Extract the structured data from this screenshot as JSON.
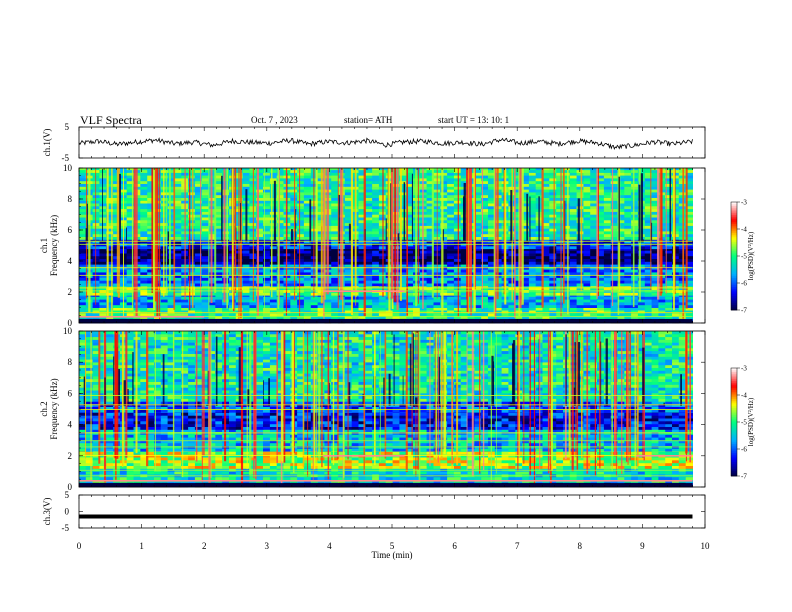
{
  "header": {
    "title": "VLF  Spectra",
    "date": "Oct. 7  , 2023",
    "station": "station= ATH",
    "start": "start  UT  =    13: 10: 1"
  },
  "colors": {
    "waveform": "#000000",
    "colormap": [
      "#000040",
      "#0000ff",
      "#00b0ff",
      "#00ff80",
      "#ffff00",
      "#ff0000",
      "#ffffff"
    ]
  },
  "chart_data": [
    {
      "type": "line",
      "name": "ch1-waveform",
      "ylabel": "ch.1(V)",
      "ylim": [
        -5,
        5
      ],
      "y_ticks": [
        "5",
        "-5"
      ],
      "xlim": [
        0,
        10
      ],
      "series": [
        {
          "values": [
            -0.3,
            0.4,
            -0.6,
            0.2,
            0.8,
            -0.4,
            0.1,
            -0.9,
            0.5,
            0.0,
            -0.2,
            0.7,
            -0.5,
            0.3,
            -0.1,
            0.6,
            -0.8,
            0.2,
            0.4,
            -0.3,
            0.1,
            -0.6,
            0.9,
            -0.2,
            0.3,
            -0.4,
            0.5,
            -0.1,
            -1.6,
            -0.9,
            0.2,
            -0.5,
            0.3
          ]
        }
      ]
    },
    {
      "type": "heatmap",
      "name": "ch1-spectrogram",
      "ylabel": "ch.1\nFrequency (kHz)",
      "ylim": [
        0,
        10
      ],
      "y_ticks": [
        "0",
        "2",
        "4",
        "6",
        "8",
        "10"
      ],
      "xlim": [
        0,
        9.8
      ],
      "colorbar": {
        "label": "log(PSD)(V²/Hz)",
        "range": [
          -7,
          -3
        ],
        "ticks": [
          "-3",
          "-4",
          "-5",
          "-6",
          "-7"
        ]
      },
      "bands": [
        {
          "f": [
            0,
            0.3
          ],
          "level": -6.5
        },
        {
          "f": [
            0.3,
            1.0
          ],
          "level": -5.0
        },
        {
          "f": [
            1.0,
            1.8
          ],
          "level": -5.6
        },
        {
          "f": [
            1.8,
            2.4
          ],
          "level": -4.9
        },
        {
          "f": [
            2.4,
            3.8
          ],
          "level": -5.8
        },
        {
          "f": [
            3.8,
            4.8
          ],
          "level": -6.8
        },
        {
          "f": [
            4.8,
            5.4
          ],
          "level": -6.2
        },
        {
          "f": [
            5.4,
            10.0
          ],
          "level": -5.1
        }
      ]
    },
    {
      "type": "heatmap",
      "name": "ch2-spectrogram",
      "ylabel": "ch.2\nFrequency (kHz)",
      "ylim": [
        0,
        10
      ],
      "y_ticks": [
        "0",
        "2",
        "4",
        "6",
        "8",
        "10"
      ],
      "xlim": [
        0,
        9.8
      ],
      "colorbar": {
        "label": "log(PSD)(V²/Hz)",
        "range": [
          -7,
          -3
        ],
        "ticks": [
          "-3",
          "-4",
          "-5",
          "-6",
          "-7"
        ]
      },
      "bands": [
        {
          "f": [
            0,
            0.3
          ],
          "level": -6.5
        },
        {
          "f": [
            0.3,
            1.2
          ],
          "level": -5.3
        },
        {
          "f": [
            1.2,
            2.3
          ],
          "level": -4.6
        },
        {
          "f": [
            2.3,
            3.7
          ],
          "level": -5.5
        },
        {
          "f": [
            3.7,
            4.8
          ],
          "level": -6.3
        },
        {
          "f": [
            4.8,
            5.5
          ],
          "level": -6.0
        },
        {
          "f": [
            5.5,
            10.0
          ],
          "level": -5.2
        }
      ]
    },
    {
      "type": "line",
      "name": "ch3-waveform",
      "ylabel": "ch.3(V)",
      "ylim": [
        -5,
        5
      ],
      "y_ticks": [
        "5",
        "0",
        "-5"
      ],
      "xlim": [
        0,
        10
      ],
      "series": [
        {
          "values": [
            -1.5,
            -1.5
          ]
        }
      ]
    }
  ],
  "xaxis": {
    "label": "Time  (min)",
    "ticks": [
      "0",
      "1",
      "2",
      "3",
      "4",
      "5",
      "6",
      "7",
      "8",
      "9",
      "10"
    ],
    "range": [
      0,
      10
    ]
  }
}
